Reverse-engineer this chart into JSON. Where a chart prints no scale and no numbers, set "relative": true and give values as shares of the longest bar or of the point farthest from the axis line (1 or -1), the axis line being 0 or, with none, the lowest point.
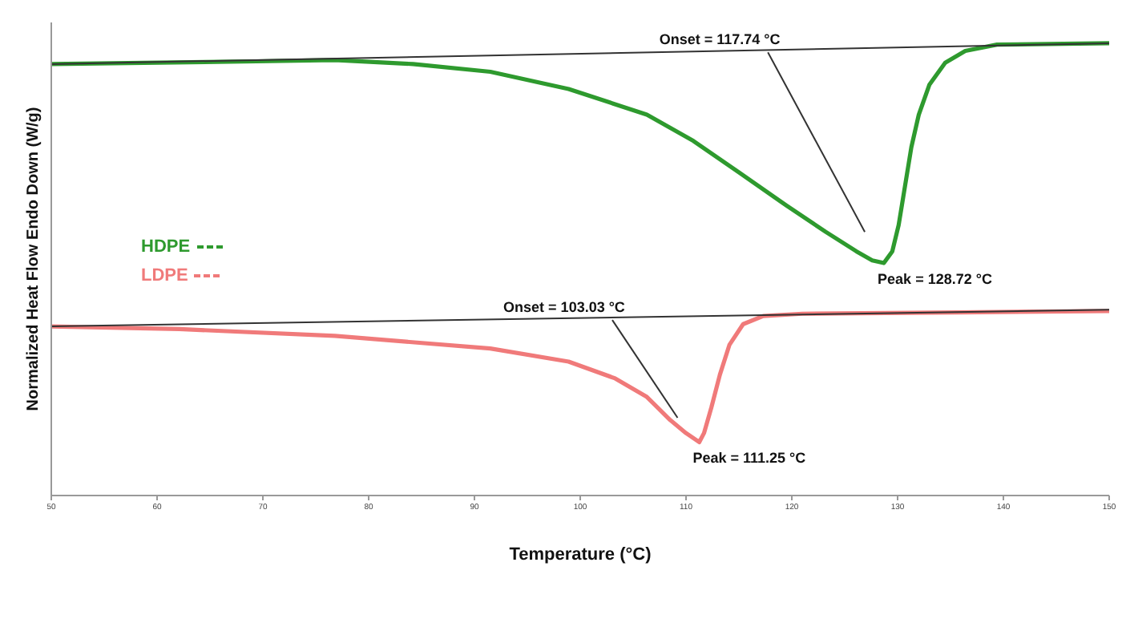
{
  "chart_data": {
    "type": "line",
    "xlabel": "Temperature (°C)",
    "ylabel": "Normalized Heat Flow Endo Down (W/g)",
    "relative": true,
    "xlim": [
      50,
      150
    ],
    "xticks": [
      50,
      60,
      70,
      80,
      90,
      100,
      110,
      120,
      130,
      140,
      150
    ],
    "legend": "left",
    "line_style": "solid",
    "marker": "none",
    "grid": false,
    "series": [
      {
        "name": "HDPE",
        "color": "#2e9a2e",
        "x": [
          50,
          69.4,
          76.8,
          84.2,
          91.5,
          98.9,
          106.3,
          110.7,
          115.1,
          119.5,
          123.2,
          126.1,
          127.6,
          128.7,
          129.5,
          130.1,
          130.7,
          131.3,
          132.0,
          133.0,
          134.5,
          136.4,
          139.4,
          150
        ],
        "values": [
          0.954,
          0.96,
          0.963,
          0.954,
          0.937,
          0.899,
          0.842,
          0.784,
          0.713,
          0.641,
          0.583,
          0.54,
          0.52,
          0.514,
          0.54,
          0.598,
          0.684,
          0.77,
          0.842,
          0.908,
          0.957,
          0.983,
          0.997,
          1
        ]
      },
      {
        "name": "LDPE",
        "color": "#f07a7a",
        "x": [
          50,
          62.1,
          76.8,
          91.5,
          98.9,
          103.3,
          106.3,
          108.5,
          110.0,
          111.25,
          111.7,
          112.4,
          113.2,
          114.1,
          115.4,
          117.3,
          121.0,
          135.7,
          150
        ],
        "values": [
          0.374,
          0.368,
          0.353,
          0.325,
          0.296,
          0.259,
          0.218,
          0.167,
          0.138,
          0.118,
          0.138,
          0.195,
          0.267,
          0.333,
          0.379,
          0.397,
          0.402,
          0.405,
          0.408
        ]
      },
      {
        "color": "#333333",
        "x": [
          50,
          150
        ],
        "values": [
          0.954,
          1
        ]
      },
      {
        "color": "#333333",
        "x": [
          117.74,
          126.9
        ],
        "values": [
          0.98,
          0.583
        ]
      },
      {
        "color": "#333333",
        "x": [
          50,
          150
        ],
        "values": [
          0.374,
          0.411
        ]
      },
      {
        "color": "#333333",
        "x": [
          103.03,
          109.2
        ],
        "values": [
          0.388,
          0.172
        ]
      }
    ],
    "annotations": [
      {
        "text": "Onset = 117.74 °C",
        "x": 117.74,
        "y": 0.98
      },
      {
        "text": "Peak = 128.72 °C",
        "x": 128.72,
        "y": 0.514
      },
      {
        "text": "Onset = 103.03 °C",
        "x": 103.03,
        "y": 0.388
      },
      {
        "text": "Peak = 111.25 °C",
        "x": 111.25,
        "y": 0.118
      }
    ]
  }
}
